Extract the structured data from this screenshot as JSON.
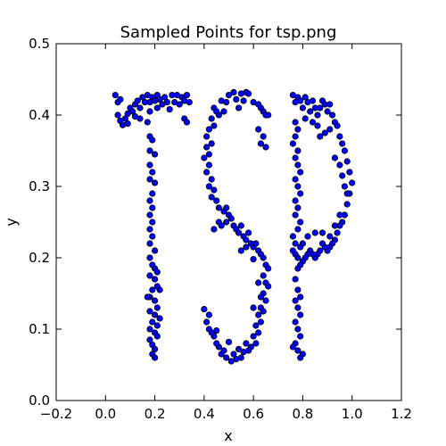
{
  "chart_data": {
    "type": "scatter",
    "title": "Sampled Points for tsp.png",
    "xlabel": "x",
    "ylabel": "y",
    "xlim": [
      -0.2,
      1.2
    ],
    "ylim": [
      0.0,
      0.5
    ],
    "xticks": [
      -0.2,
      0.0,
      0.2,
      0.4,
      0.6,
      0.8,
      1.0,
      1.2
    ],
    "xtick_labels": [
      "−0.2",
      "0.0",
      "0.2",
      "0.4",
      "0.6",
      "0.8",
      "1.0",
      "1.2"
    ],
    "yticks": [
      0.0,
      0.1,
      0.2,
      0.3,
      0.4,
      0.5
    ],
    "ytick_labels": [
      "0.0",
      "0.1",
      "0.2",
      "0.3",
      "0.4",
      "0.5"
    ],
    "grid": false,
    "marker_color": "#0000ff",
    "marker_edge_color": "#000000",
    "series": [
      {
        "name": "T",
        "points": [
          [
            0.04,
            0.428
          ],
          [
            0.05,
            0.418
          ],
          [
            0.06,
            0.422
          ],
          [
            0.05,
            0.4
          ],
          [
            0.06,
            0.392
          ],
          [
            0.07,
            0.386
          ],
          [
            0.08,
            0.395
          ],
          [
            0.09,
            0.402
          ],
          [
            0.09,
            0.388
          ],
          [
            0.1,
            0.41
          ],
          [
            0.11,
            0.405
          ],
          [
            0.12,
            0.415
          ],
          [
            0.12,
            0.398
          ],
          [
            0.13,
            0.42
          ],
          [
            0.14,
            0.41
          ],
          [
            0.15,
            0.425
          ],
          [
            0.16,
            0.418
          ],
          [
            0.17,
            0.428
          ],
          [
            0.18,
            0.418
          ],
          [
            0.18,
            0.405
          ],
          [
            0.19,
            0.425
          ],
          [
            0.2,
            0.42
          ],
          [
            0.21,
            0.428
          ],
          [
            0.21,
            0.41
          ],
          [
            0.22,
            0.422
          ],
          [
            0.23,
            0.415
          ],
          [
            0.24,
            0.425
          ],
          [
            0.25,
            0.418
          ],
          [
            0.26,
            0.408
          ],
          [
            0.27,
            0.428
          ],
          [
            0.28,
            0.418
          ],
          [
            0.29,
            0.428
          ],
          [
            0.3,
            0.415
          ],
          [
            0.31,
            0.425
          ],
          [
            0.32,
            0.42
          ],
          [
            0.33,
            0.428
          ],
          [
            0.34,
            0.418
          ],
          [
            0.32,
            0.395
          ],
          [
            0.33,
            0.39
          ],
          [
            0.14,
            0.395
          ],
          [
            0.17,
            0.39
          ],
          [
            0.18,
            0.37
          ],
          [
            0.19,
            0.365
          ],
          [
            0.18,
            0.35
          ],
          [
            0.2,
            0.345
          ],
          [
            0.18,
            0.33
          ],
          [
            0.19,
            0.32
          ],
          [
            0.18,
            0.31
          ],
          [
            0.2,
            0.305
          ],
          [
            0.19,
            0.29
          ],
          [
            0.18,
            0.28
          ],
          [
            0.19,
            0.27
          ],
          [
            0.18,
            0.26
          ],
          [
            0.19,
            0.25
          ],
          [
            0.18,
            0.24
          ],
          [
            0.19,
            0.23
          ],
          [
            0.18,
            0.22
          ],
          [
            0.2,
            0.21
          ],
          [
            0.18,
            0.2
          ],
          [
            0.19,
            0.19
          ],
          [
            0.2,
            0.185
          ],
          [
            0.21,
            0.18
          ],
          [
            0.18,
            0.175
          ],
          [
            0.2,
            0.17
          ],
          [
            0.21,
            0.16
          ],
          [
            0.19,
            0.155
          ],
          [
            0.18,
            0.145
          ],
          [
            0.2,
            0.14
          ],
          [
            0.21,
            0.13
          ],
          [
            0.18,
            0.125
          ],
          [
            0.2,
            0.12
          ],
          [
            0.22,
            0.115
          ],
          [
            0.19,
            0.11
          ],
          [
            0.18,
            0.1
          ],
          [
            0.2,
            0.095
          ],
          [
            0.21,
            0.09
          ],
          [
            0.18,
            0.085
          ],
          [
            0.19,
            0.078
          ],
          [
            0.2,
            0.072
          ],
          [
            0.19,
            0.065
          ],
          [
            0.2,
            0.06
          ],
          [
            0.21,
            0.105
          ],
          [
            0.17,
            0.145
          ],
          [
            0.22,
            0.155
          ]
        ]
      },
      {
        "name": "S",
        "points": [
          [
            0.5,
            0.428
          ],
          [
            0.52,
            0.432
          ],
          [
            0.55,
            0.43
          ],
          [
            0.57,
            0.432
          ],
          [
            0.58,
            0.43
          ],
          [
            0.47,
            0.42
          ],
          [
            0.49,
            0.418
          ],
          [
            0.53,
            0.422
          ],
          [
            0.56,
            0.42
          ],
          [
            0.6,
            0.418
          ],
          [
            0.62,
            0.415
          ],
          [
            0.63,
            0.41
          ],
          [
            0.64,
            0.405
          ],
          [
            0.65,
            0.4
          ],
          [
            0.66,
            0.4
          ],
          [
            0.44,
            0.41
          ],
          [
            0.45,
            0.405
          ],
          [
            0.46,
            0.4
          ],
          [
            0.43,
            0.395
          ],
          [
            0.44,
            0.385
          ],
          [
            0.42,
            0.38
          ],
          [
            0.41,
            0.37
          ],
          [
            0.43,
            0.36
          ],
          [
            0.41,
            0.355
          ],
          [
            0.42,
            0.345
          ],
          [
            0.4,
            0.34
          ],
          [
            0.42,
            0.33
          ],
          [
            0.41,
            0.32
          ],
          [
            0.43,
            0.31
          ],
          [
            0.42,
            0.3
          ],
          [
            0.44,
            0.295
          ],
          [
            0.43,
            0.285
          ],
          [
            0.45,
            0.28
          ],
          [
            0.46,
            0.27
          ],
          [
            0.48,
            0.265
          ],
          [
            0.49,
            0.27
          ],
          [
            0.5,
            0.26
          ],
          [
            0.51,
            0.255
          ],
          [
            0.49,
            0.25
          ],
          [
            0.52,
            0.245
          ],
          [
            0.53,
            0.24
          ],
          [
            0.55,
            0.245
          ],
          [
            0.54,
            0.235
          ],
          [
            0.56,
            0.23
          ],
          [
            0.58,
            0.235
          ],
          [
            0.57,
            0.225
          ],
          [
            0.59,
            0.22
          ],
          [
            0.6,
            0.215
          ],
          [
            0.61,
            0.22
          ],
          [
            0.62,
            0.21
          ],
          [
            0.63,
            0.205
          ],
          [
            0.64,
            0.2
          ],
          [
            0.65,
            0.19
          ],
          [
            0.66,
            0.185
          ],
          [
            0.64,
            0.175
          ],
          [
            0.65,
            0.165
          ],
          [
            0.66,
            0.16
          ],
          [
            0.64,
            0.15
          ],
          [
            0.63,
            0.145
          ],
          [
            0.65,
            0.14
          ],
          [
            0.63,
            0.13
          ],
          [
            0.64,
            0.125
          ],
          [
            0.62,
            0.12
          ],
          [
            0.63,
            0.11
          ],
          [
            0.61,
            0.105
          ],
          [
            0.62,
            0.095
          ],
          [
            0.6,
            0.09
          ],
          [
            0.61,
            0.08
          ],
          [
            0.59,
            0.075
          ],
          [
            0.58,
            0.07
          ],
          [
            0.56,
            0.068
          ],
          [
            0.55,
            0.06
          ],
          [
            0.53,
            0.058
          ],
          [
            0.52,
            0.065
          ],
          [
            0.51,
            0.055
          ],
          [
            0.49,
            0.06
          ],
          [
            0.48,
            0.07
          ],
          [
            0.47,
            0.065
          ],
          [
            0.46,
            0.075
          ],
          [
            0.45,
            0.08
          ],
          [
            0.44,
            0.09
          ],
          [
            0.43,
            0.095
          ],
          [
            0.42,
            0.1
          ],
          [
            0.41,
            0.11
          ],
          [
            0.42,
            0.12
          ],
          [
            0.4,
            0.128
          ],
          [
            0.62,
            0.38
          ],
          [
            0.64,
            0.37
          ],
          [
            0.63,
            0.36
          ],
          [
            0.65,
            0.355
          ],
          [
            0.44,
            0.24
          ],
          [
            0.46,
            0.25
          ],
          [
            0.47,
            0.245
          ],
          [
            0.55,
            0.21
          ],
          [
            0.57,
            0.215
          ],
          [
            0.6,
            0.198
          ],
          [
            0.54,
            0.072
          ],
          [
            0.57,
            0.08
          ],
          [
            0.5,
            0.082
          ],
          [
            0.45,
            0.098
          ],
          [
            0.6,
            0.13
          ],
          [
            0.62,
            0.165
          ],
          [
            0.48,
            0.405
          ],
          [
            0.54,
            0.41
          ]
        ]
      },
      {
        "name": "P",
        "points": [
          [
            0.76,
            0.428
          ],
          [
            0.77,
            0.418
          ],
          [
            0.78,
            0.425
          ],
          [
            0.79,
            0.42
          ],
          [
            0.8,
            0.41
          ],
          [
            0.81,
            0.425
          ],
          [
            0.82,
            0.418
          ],
          [
            0.83,
            0.405
          ],
          [
            0.84,
            0.42
          ],
          [
            0.85,
            0.41
          ],
          [
            0.86,
            0.4
          ],
          [
            0.87,
            0.41
          ],
          [
            0.88,
            0.42
          ],
          [
            0.89,
            0.415
          ],
          [
            0.9,
            0.405
          ],
          [
            0.91,
            0.415
          ],
          [
            0.92,
            0.4
          ],
          [
            0.93,
            0.39
          ],
          [
            0.94,
            0.385
          ],
          [
            0.95,
            0.37
          ],
          [
            0.96,
            0.36
          ],
          [
            0.97,
            0.35
          ],
          [
            0.98,
            0.335
          ],
          [
            0.99,
            0.32
          ],
          [
            1.0,
            0.305
          ],
          [
            0.99,
            0.29
          ],
          [
            0.98,
            0.275
          ],
          [
            0.97,
            0.26
          ],
          [
            0.96,
            0.25
          ],
          [
            0.95,
            0.245
          ],
          [
            0.94,
            0.235
          ],
          [
            0.93,
            0.225
          ],
          [
            0.92,
            0.22
          ],
          [
            0.91,
            0.215
          ],
          [
            0.9,
            0.21
          ],
          [
            0.89,
            0.215
          ],
          [
            0.88,
            0.22
          ],
          [
            0.87,
            0.21
          ],
          [
            0.86,
            0.205
          ],
          [
            0.85,
            0.2
          ],
          [
            0.84,
            0.205
          ],
          [
            0.83,
            0.21
          ],
          [
            0.82,
            0.205
          ],
          [
            0.81,
            0.2
          ],
          [
            0.8,
            0.195
          ],
          [
            0.79,
            0.19
          ],
          [
            0.78,
            0.2
          ],
          [
            0.77,
            0.205
          ],
          [
            0.76,
            0.21
          ],
          [
            0.77,
            0.39
          ],
          [
            0.78,
            0.38
          ],
          [
            0.77,
            0.37
          ],
          [
            0.76,
            0.36
          ],
          [
            0.78,
            0.35
          ],
          [
            0.77,
            0.34
          ],
          [
            0.78,
            0.33
          ],
          [
            0.79,
            0.32
          ],
          [
            0.77,
            0.31
          ],
          [
            0.78,
            0.3
          ],
          [
            0.79,
            0.29
          ],
          [
            0.77,
            0.28
          ],
          [
            0.78,
            0.27
          ],
          [
            0.77,
            0.26
          ],
          [
            0.79,
            0.25
          ],
          [
            0.78,
            0.24
          ],
          [
            0.76,
            0.23
          ],
          [
            0.77,
            0.22
          ],
          [
            0.79,
            0.215
          ],
          [
            0.78,
            0.185
          ],
          [
            0.77,
            0.17
          ],
          [
            0.78,
            0.155
          ],
          [
            0.79,
            0.145
          ],
          [
            0.77,
            0.14
          ],
          [
            0.78,
            0.13
          ],
          [
            0.79,
            0.12
          ],
          [
            0.77,
            0.11
          ],
          [
            0.78,
            0.1
          ],
          [
            0.79,
            0.09
          ],
          [
            0.77,
            0.08
          ],
          [
            0.78,
            0.07
          ],
          [
            0.79,
            0.06
          ],
          [
            0.8,
            0.065
          ],
          [
            0.76,
            0.075
          ],
          [
            0.87,
            0.37
          ],
          [
            0.89,
            0.375
          ],
          [
            0.91,
            0.38
          ],
          [
            0.93,
            0.34
          ],
          [
            0.95,
            0.33
          ],
          [
            0.96,
            0.315
          ],
          [
            0.97,
            0.3
          ],
          [
            0.98,
            0.29
          ],
          [
            0.95,
            0.26
          ],
          [
            0.93,
            0.245
          ],
          [
            0.91,
            0.23
          ],
          [
            0.88,
            0.235
          ],
          [
            0.85,
            0.235
          ],
          [
            0.82,
            0.23
          ],
          [
            0.8,
            0.22
          ],
          [
            0.84,
            0.39
          ],
          [
            0.86,
            0.385
          ],
          [
            0.81,
            0.395
          ]
        ]
      }
    ]
  }
}
